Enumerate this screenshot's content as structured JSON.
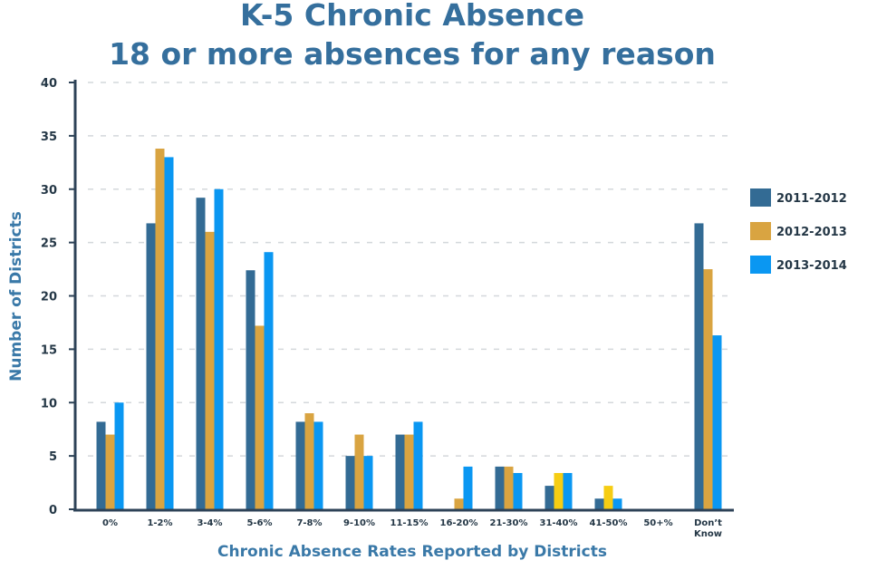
{
  "chart_data": {
    "type": "bar",
    "title": "K-5 Chronic Absence",
    "subtitle": "18 or more absences for any reason",
    "xlabel": "Chronic Absence Rates Reported by Districts",
    "ylabel": "Number of Districts",
    "ylim": [
      0,
      40
    ],
    "yticks": [
      0,
      5,
      10,
      15,
      20,
      25,
      30,
      35,
      40
    ],
    "grid": true,
    "legend_position": "right",
    "categories": [
      "0%",
      "1-2%",
      "3-4%",
      "5-6%",
      "7-8%",
      "9-10%",
      "11-15%",
      "16-20%",
      "21-30%",
      "31-40%",
      "41-50%",
      "50+%",
      "Don't Know"
    ],
    "category_display": [
      [
        "0%"
      ],
      [
        "1-2%"
      ],
      [
        "3-4%"
      ],
      [
        "5-6%"
      ],
      [
        "7-8%"
      ],
      [
        "9-10%"
      ],
      [
        "11-15%"
      ],
      [
        "16-20%"
      ],
      [
        "21-30%"
      ],
      [
        "31-40%"
      ],
      [
        "41-50%"
      ],
      [
        "50+%"
      ],
      [
        "Don’t",
        "Know"
      ]
    ],
    "series": [
      {
        "name": "2011-2012",
        "color": "#336b94",
        "values": [
          8.2,
          26.8,
          29.2,
          22.4,
          8.2,
          5,
          7,
          0,
          4,
          2.2,
          1,
          0,
          26.8
        ]
      },
      {
        "name": "2012-2013",
        "color": "#d9a441",
        "values": [
          7,
          33.8,
          26,
          17.2,
          9,
          7,
          7,
          1,
          4,
          3.4,
          2.2,
          0,
          22.5
        ]
      },
      {
        "name": "2013-2014",
        "color": "#0a97f2",
        "values": [
          10,
          33,
          30,
          24.1,
          8.2,
          5,
          8.2,
          4,
          3.4,
          3.4,
          1,
          0,
          16.3
        ]
      }
    ],
    "highlight_color": "#f6cd13",
    "highlighted_bars": [
      [
        1,
        9
      ],
      [
        1,
        10
      ]
    ]
  }
}
